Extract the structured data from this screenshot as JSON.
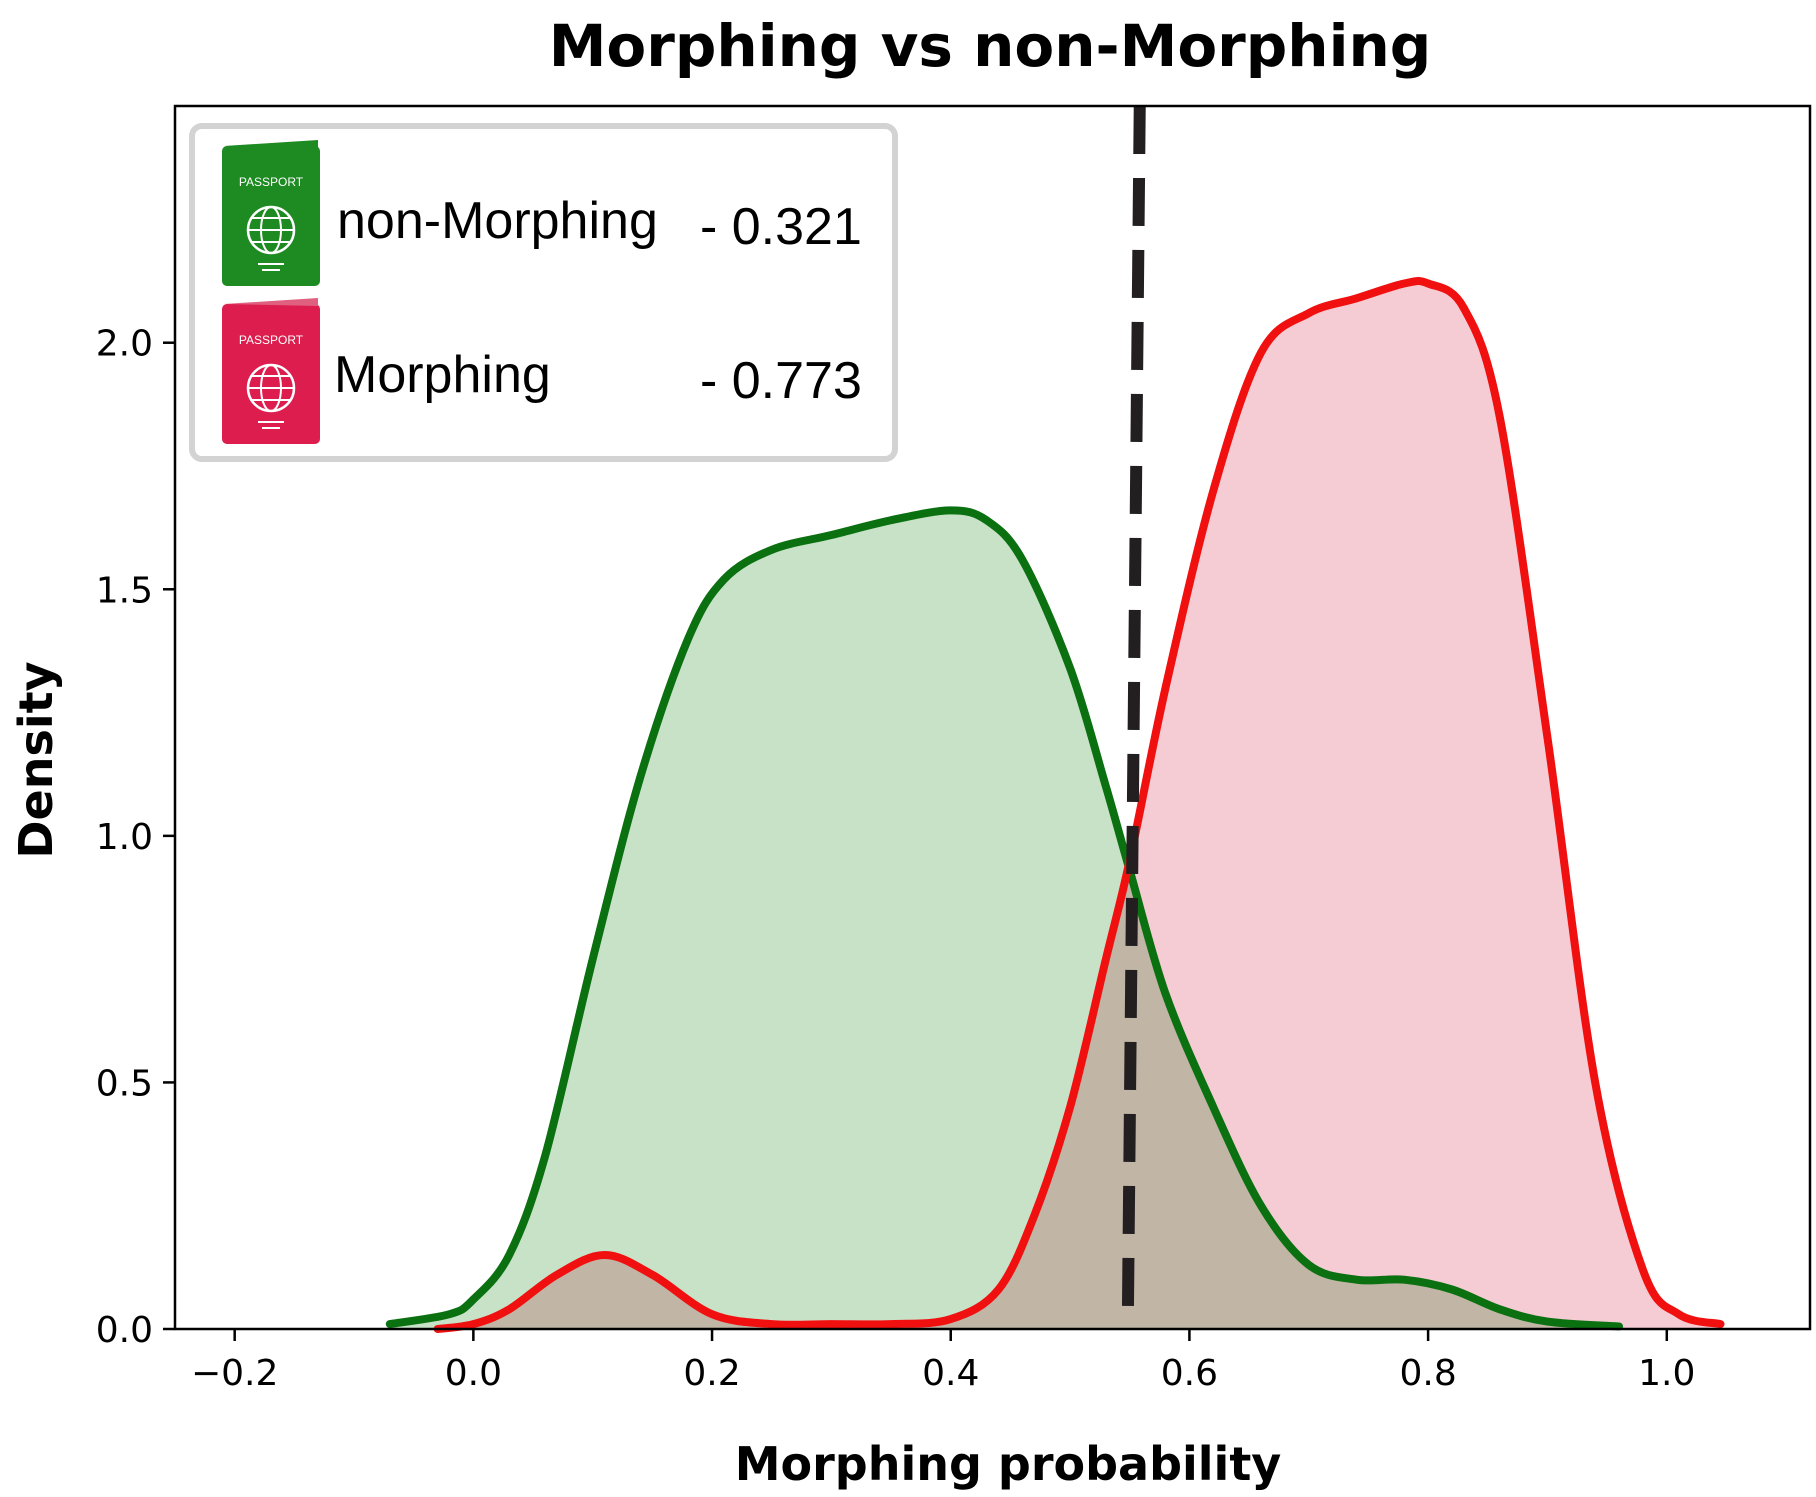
{
  "chart_data": {
    "type": "area",
    "title": "Morphing vs non-Morphing",
    "xlabel": "Morphing probability",
    "ylabel": "Density",
    "xlim": [
      -0.25,
      1.12
    ],
    "ylim": [
      0,
      2.48
    ],
    "xticks": [
      {
        "v": -0.2,
        "label": "−0.2"
      },
      {
        "v": 0.0,
        "label": "0.0"
      },
      {
        "v": 0.2,
        "label": "0.2"
      },
      {
        "v": 0.4,
        "label": "0.4"
      },
      {
        "v": 0.6,
        "label": "0.6"
      },
      {
        "v": 0.8,
        "label": "0.8"
      },
      {
        "v": 1.0,
        "label": "1.0"
      }
    ],
    "yticks": [
      {
        "v": 0.0,
        "label": "0.0"
      },
      {
        "v": 0.5,
        "label": "0.5"
      },
      {
        "v": 1.0,
        "label": "1.0"
      },
      {
        "v": 1.5,
        "label": "1.5"
      },
      {
        "v": 2.0,
        "label": "2.0"
      }
    ],
    "threshold": {
      "x": 0.55,
      "style": "dashed",
      "color": "#231f20"
    },
    "series": [
      {
        "name": "non-Morphing",
        "score": "- 0.321",
        "color": "#0a7010",
        "fill": "#c8e2c8",
        "x": [
          -0.07,
          -0.02,
          0.0,
          0.03,
          0.06,
          0.1,
          0.14,
          0.18,
          0.21,
          0.25,
          0.3,
          0.35,
          0.4,
          0.43,
          0.46,
          0.5,
          0.53,
          0.55,
          0.58,
          0.62,
          0.66,
          0.7,
          0.74,
          0.78,
          0.82,
          0.86,
          0.9,
          0.96
        ],
        "y": [
          0.01,
          0.03,
          0.06,
          0.15,
          0.35,
          0.75,
          1.12,
          1.4,
          1.52,
          1.58,
          1.61,
          1.64,
          1.66,
          1.64,
          1.56,
          1.34,
          1.1,
          0.93,
          0.68,
          0.45,
          0.25,
          0.13,
          0.1,
          0.1,
          0.08,
          0.04,
          0.015,
          0.005
        ]
      },
      {
        "name": "Morphing",
        "score": "- 0.773",
        "color": "#f01010",
        "fill": "#f4c3cc",
        "x": [
          -0.03,
          0.0,
          0.03,
          0.07,
          0.11,
          0.15,
          0.2,
          0.25,
          0.3,
          0.35,
          0.4,
          0.44,
          0.47,
          0.5,
          0.53,
          0.55,
          0.58,
          0.62,
          0.66,
          0.7,
          0.74,
          0.78,
          0.8,
          0.83,
          0.86,
          0.9,
          0.94,
          0.98,
          1.01,
          1.045
        ],
        "y": [
          0.0,
          0.01,
          0.04,
          0.11,
          0.15,
          0.11,
          0.03,
          0.01,
          0.01,
          0.01,
          0.02,
          0.08,
          0.23,
          0.45,
          0.75,
          0.95,
          1.3,
          1.7,
          1.98,
          2.06,
          2.09,
          2.12,
          2.12,
          2.07,
          1.85,
          1.2,
          0.5,
          0.12,
          0.03,
          0.01
        ]
      }
    ],
    "overlap_fill": "#c0b8a6",
    "legend": {
      "position": "top-left",
      "border": "#d3d3d3"
    },
    "grid": false
  },
  "legend_entries": {
    "passport_word": "PASSPORT"
  }
}
